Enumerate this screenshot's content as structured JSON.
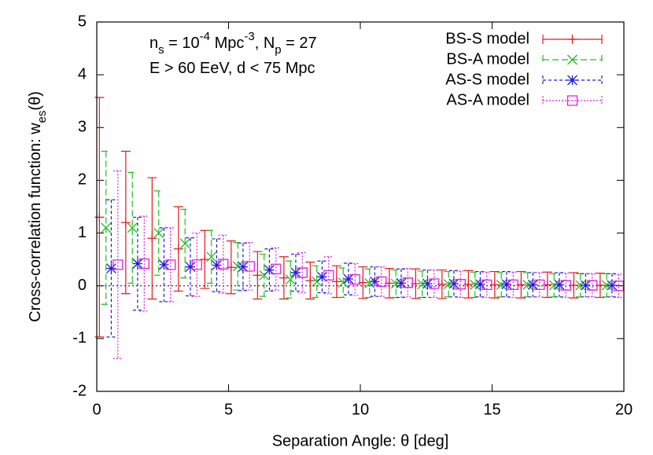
{
  "chart_data": {
    "type": "errorbar",
    "annotations": [
      [
        {
          "text": "n"
        },
        {
          "text": "s",
          "shift": "sub"
        },
        {
          "text": " = 10"
        },
        {
          "text": "-4",
          "shift": "sup"
        },
        {
          "text": " Mpc"
        },
        {
          "text": "-3",
          "shift": "sup"
        },
        {
          "text": ", N"
        },
        {
          "text": "p",
          "shift": "sub"
        },
        {
          "text": " = 27"
        }
      ],
      [
        {
          "text": "E > 60 EeV, d < 75 Mpc"
        }
      ]
    ],
    "xlabel": "Separation Angle: θ [deg]",
    "ylabel": [
      {
        "text": "Cross-correlation function: w"
      },
      {
        "text": "es",
        "shift": "sub"
      },
      {
        "text": "(θ)"
      }
    ],
    "xlim": [
      0,
      20
    ],
    "ylim": [
      -2,
      5
    ],
    "xticks": [
      0,
      5,
      10,
      15,
      20
    ],
    "yticks": [
      -2,
      -1,
      0,
      1,
      2,
      3,
      4,
      5
    ],
    "zeroaxis": true,
    "legend": "top-right",
    "series": [
      {
        "name": "BS-S model",
        "color": "#e41a1c",
        "marker": "plus",
        "dash": "none",
        "x": [
          0.1,
          1.1,
          2.1,
          3.1,
          4.1,
          5.1,
          6.1,
          7.1,
          8.1,
          9.1,
          10.1,
          11.1,
          12.1,
          13.1,
          14.1,
          15.1,
          16.1,
          17.1,
          18.1,
          19.1
        ],
        "values": [
          1.3,
          1.2,
          0.9,
          0.7,
          0.5,
          0.35,
          0.2,
          0.15,
          0.1,
          0.08,
          0.06,
          0.05,
          0.04,
          0.03,
          0.03,
          0.02,
          0.02,
          0.02,
          0.01,
          0.01
        ],
        "errors": [
          2.27,
          1.35,
          1.15,
          0.8,
          0.55,
          0.5,
          0.45,
          0.4,
          0.35,
          0.3,
          0.3,
          0.28,
          0.28,
          0.27,
          0.26,
          0.25,
          0.25,
          0.24,
          0.24,
          0.23
        ]
      },
      {
        "name": "BS-A model",
        "color": "#1fbf1f",
        "marker": "cross",
        "dash": "8 4",
        "x": [
          0.35,
          1.35,
          2.35,
          3.35,
          4.35,
          5.35,
          6.35,
          7.35,
          8.35,
          9.35,
          10.35,
          11.35,
          12.35,
          13.35,
          14.35,
          15.35,
          16.35,
          17.35,
          18.35,
          19.35
        ],
        "values": [
          1.1,
          1.1,
          1.0,
          0.8,
          0.55,
          0.37,
          0.2,
          0.12,
          0.08,
          0.06,
          0.05,
          0.04,
          0.03,
          0.03,
          0.02,
          0.02,
          0.02,
          0.01,
          0.01,
          0.01
        ],
        "errors": [
          1.45,
          1.05,
          0.8,
          0.65,
          0.5,
          0.45,
          0.4,
          0.35,
          0.3,
          0.28,
          0.27,
          0.26,
          0.25,
          0.24,
          0.24,
          0.23,
          0.23,
          0.22,
          0.22,
          0.22
        ]
      },
      {
        "name": "AS-S model",
        "color": "#1c1cdc",
        "marker": "star",
        "dash": "4 3",
        "x": [
          0.55,
          1.55,
          2.55,
          3.55,
          4.55,
          5.55,
          6.55,
          7.55,
          8.55,
          9.55,
          10.55,
          11.55,
          12.55,
          13.55,
          14.55,
          15.55,
          16.55,
          17.55,
          18.55,
          19.55
        ],
        "values": [
          0.33,
          0.42,
          0.4,
          0.36,
          0.39,
          0.36,
          0.3,
          0.25,
          0.17,
          0.13,
          0.08,
          0.05,
          0.04,
          0.04,
          0.03,
          0.03,
          0.02,
          0.02,
          0.01,
          0.01
        ],
        "errors": [
          1.3,
          0.88,
          0.7,
          0.55,
          0.5,
          0.45,
          0.4,
          0.35,
          0.3,
          0.3,
          0.28,
          0.27,
          0.26,
          0.25,
          0.24,
          0.24,
          0.23,
          0.23,
          0.22,
          0.22
        ]
      },
      {
        "name": "AS-A model",
        "color": "#e020e0",
        "marker": "square",
        "dash": "2 2",
        "x": [
          0.8,
          1.8,
          2.8,
          3.8,
          4.8,
          5.8,
          6.8,
          7.8,
          8.8,
          9.8,
          10.8,
          11.8,
          12.8,
          13.8,
          14.8,
          15.8,
          16.8,
          17.8,
          18.8,
          19.8
        ],
        "values": [
          0.4,
          0.42,
          0.4,
          0.4,
          0.41,
          0.37,
          0.32,
          0.25,
          0.2,
          0.12,
          0.08,
          0.06,
          0.04,
          0.03,
          0.02,
          0.02,
          0.02,
          0.01,
          0.01,
          0
        ],
        "errors": [
          1.78,
          0.9,
          0.7,
          0.6,
          0.55,
          0.45,
          0.4,
          0.38,
          0.35,
          0.3,
          0.28,
          0.27,
          0.26,
          0.25,
          0.24,
          0.24,
          0.23,
          0.23,
          0.22,
          0.22
        ]
      }
    ]
  }
}
